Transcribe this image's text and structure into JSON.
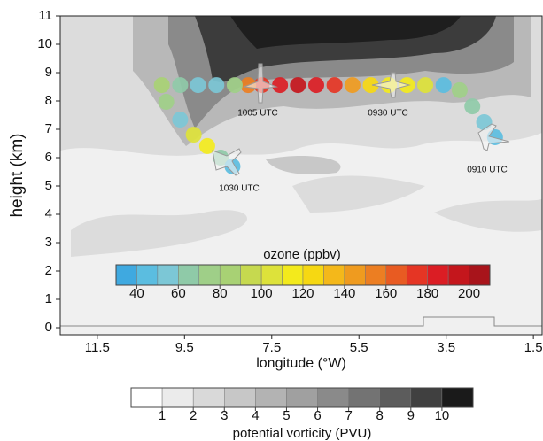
{
  "chart_data": {
    "type": "track",
    "ylabel": "height (km)",
    "xlabel": "longitude (°W)",
    "xlim": [
      12.35,
      1.3
    ],
    "xticks": [
      11.5,
      9.5,
      7.5,
      5.5,
      3.5,
      1.5
    ],
    "ylim": [
      -0.25,
      11
    ],
    "yticks": [
      0,
      1,
      2,
      3,
      4,
      5,
      6,
      7,
      8,
      9,
      10,
      11
    ],
    "annotations": [
      "1005 UTC",
      "0930 UTC",
      "0910 UTC",
      "1030 UTC"
    ],
    "track": {
      "x": [
        2.38,
        2.63,
        2.9,
        3.19,
        3.56,
        3.98,
        4.4,
        4.81,
        5.23,
        5.65,
        6.06,
        6.48,
        6.9,
        7.31,
        7.73,
        8.04,
        8.35,
        8.77,
        9.19,
        9.6,
        10.02,
        9.92,
        9.6,
        9.29,
        8.98,
        8.67,
        8.4
      ],
      "y": [
        6.72,
        7.25,
        7.81,
        8.38,
        8.56,
        8.56,
        8.56,
        8.56,
        8.56,
        8.56,
        8.56,
        8.56,
        8.56,
        8.56,
        8.56,
        8.56,
        8.56,
        8.56,
        8.56,
        8.56,
        8.56,
        7.97,
        7.34,
        6.81,
        6.41,
        6.0,
        5.69
      ],
      "ozone": [
        45,
        55,
        60,
        70,
        45,
        105,
        115,
        115,
        125,
        145,
        175,
        185,
        190,
        185,
        175,
        150,
        70,
        55,
        55,
        65,
        80,
        70,
        55,
        100,
        110,
        65,
        45
      ]
    },
    "ozone_colorbar": {
      "title": "ozone (ppbv)",
      "lim": [
        30,
        210
      ],
      "ticks": [
        40,
        60,
        80,
        100,
        120,
        140,
        160,
        180,
        200
      ],
      "colors": [
        "#3fa9e0",
        "#5bbde0",
        "#7cc7d6",
        "#8fcaa8",
        "#9fcf88",
        "#a8d174",
        "#c6d94f",
        "#dde23a",
        "#f3ea1c",
        "#f6d812",
        "#f4b81a",
        "#ef9b1f",
        "#ec7e22",
        "#e85b22",
        "#e53524",
        "#db1d24",
        "#c4161c",
        "#a8141b"
      ]
    },
    "pv_colorbar": {
      "title": "potential vorticity (PVU)",
      "lim": [
        0,
        11
      ],
      "ticks": [
        1,
        2,
        3,
        4,
        5,
        6,
        7,
        8,
        9,
        10
      ],
      "colors": [
        "#ffffff",
        "#ebebeb",
        "#d9d9d9",
        "#c7c7c7",
        "#b3b3b3",
        "#a0a0a0",
        "#8a8a8a",
        "#737373",
        "#5c5c5c",
        "#404040",
        "#1a1a1a"
      ]
    }
  }
}
